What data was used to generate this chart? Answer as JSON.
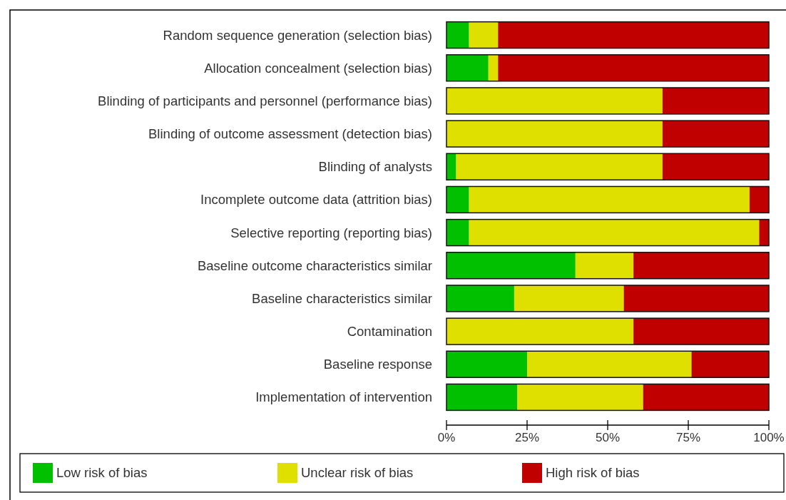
{
  "chart_data": {
    "type": "bar",
    "orientation": "horizontal",
    "stacked": true,
    "categories": [
      "Random sequence generation (selection bias)",
      "Allocation concealment (selection bias)",
      "Blinding of participants and personnel (performance bias)",
      "Blinding of outcome assessment (detection bias)",
      "Blinding of analysts",
      "Incomplete outcome data (attrition bias)",
      "Selective reporting (reporting bias)",
      "Baseline outcome characteristics similar",
      "Baseline characteristics similar",
      "Contamination",
      "Baseline response",
      "Implementation of intervention"
    ],
    "series": [
      {
        "name": "Low risk of bias",
        "color": "#00c000",
        "values": [
          7,
          13,
          0,
          0,
          3,
          7,
          7,
          40,
          21,
          0,
          25,
          22
        ]
      },
      {
        "name": "Unclear risk of bias",
        "color": "#e0e000",
        "values": [
          9,
          3,
          67,
          67,
          64,
          87,
          90,
          18,
          34,
          58,
          51,
          39
        ]
      },
      {
        "name": "High risk of bias",
        "color": "#c00000",
        "values": [
          84,
          84,
          33,
          33,
          33,
          6,
          3,
          42,
          45,
          42,
          24,
          39
        ]
      }
    ],
    "xlim": [
      0,
      100
    ],
    "xticks": [
      {
        "value": 0,
        "label": "0%"
      },
      {
        "value": 25,
        "label": "25%"
      },
      {
        "value": 50,
        "label": "50%"
      },
      {
        "value": 75,
        "label": "75%"
      },
      {
        "value": 100,
        "label": "100%"
      }
    ],
    "legend": "bottom"
  }
}
